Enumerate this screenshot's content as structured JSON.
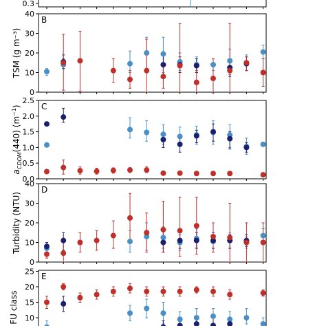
{
  "colors": {
    "light_blue": "#4a8fc6",
    "dark_blue": "#1a1f6e",
    "red": "#c0302a"
  },
  "chart_data": [
    {
      "panel": "top-partial",
      "type": "scatter",
      "ytick_labels": [
        "0.3"
      ],
      "ylim": [
        0.3,
        0.35
      ],
      "series": []
    },
    {
      "panel": "B",
      "type": "scatter",
      "ylabel": "TSM (g m⁻³)",
      "ylim": [
        0,
        40
      ],
      "yticks": [
        0,
        10,
        20,
        30,
        40
      ],
      "x": [
        1,
        2,
        3,
        4,
        5,
        6,
        7,
        8,
        9,
        10,
        11,
        12,
        13
      ],
      "series": [
        {
          "color": "light_blue",
          "points": [
            {
              "x": 1,
              "y": 10.5,
              "lo": 8.5,
              "hi": 12
            },
            {
              "x": 2,
              "y": 14,
              "lo": 12,
              "hi": 17
            },
            {
              "x": 6,
              "y": 14.5,
              "lo": 10,
              "hi": 21
            },
            {
              "x": 7,
              "y": 20,
              "lo": 11,
              "hi": 28
            },
            {
              "x": 8,
              "y": 19.5,
              "lo": 10,
              "hi": 28
            },
            {
              "x": 9,
              "y": 15.5,
              "lo": 11,
              "hi": 20
            },
            {
              "x": 10,
              "y": 14,
              "lo": 10,
              "hi": 18
            },
            {
              "x": 11,
              "y": 14,
              "lo": 11,
              "hi": 17
            },
            {
              "x": 12,
              "y": 16,
              "lo": 9,
              "hi": 22
            },
            {
              "x": 13,
              "y": 15,
              "lo": 11,
              "hi": 19
            },
            {
              "x": 14,
              "y": 20.5,
              "lo": 17,
              "hi": 24
            }
          ]
        },
        {
          "color": "dark_blue",
          "points": [
            {
              "x": 2,
              "y": 15.5,
              "lo": 12,
              "hi": 19
            },
            {
              "x": 8,
              "y": 14,
              "lo": 8,
              "hi": 20
            },
            {
              "x": 9,
              "y": 14,
              "lo": 10,
              "hi": 18
            },
            {
              "x": 10,
              "y": 13.5,
              "lo": 10,
              "hi": 17
            },
            {
              "x": 12,
              "y": 12.5,
              "lo": 8,
              "hi": 17
            },
            {
              "x": 13,
              "y": 14.5,
              "lo": 11,
              "hi": 18
            }
          ]
        },
        {
          "color": "red",
          "points": [
            {
              "x": 2,
              "y": 15,
              "lo": 1,
              "hi": 29.5
            },
            {
              "x": 3,
              "y": 16,
              "lo": 0.5,
              "hi": 31
            },
            {
              "x": 5,
              "y": 11,
              "lo": 5,
              "hi": 17
            },
            {
              "x": 6,
              "y": 6.5,
              "lo": 2,
              "hi": 11
            },
            {
              "x": 7,
              "y": 11,
              "lo": 0,
              "hi": 27
            },
            {
              "x": 8,
              "y": 8,
              "lo": 2,
              "hi": 13
            },
            {
              "x": 9,
              "y": 13.5,
              "lo": 0,
              "hi": 35
            },
            {
              "x": 10,
              "y": 5,
              "lo": 0,
              "hi": 11
            },
            {
              "x": 11,
              "y": 7,
              "lo": 0,
              "hi": 17
            },
            {
              "x": 12,
              "y": 11,
              "lo": 0,
              "hi": 35
            },
            {
              "x": 13,
              "y": 15,
              "lo": 11,
              "hi": 18
            },
            {
              "x": 14,
              "y": 10,
              "lo": 3,
              "hi": 17
            }
          ]
        }
      ]
    },
    {
      "panel": "C",
      "type": "scatter",
      "ylabel": "a_CDOM(440) (m⁻¹)",
      "ylim": [
        0,
        2.5
      ],
      "yticks": [
        0.0,
        0.5,
        1.0,
        1.5,
        2.0,
        2.5
      ],
      "series": [
        {
          "color": "light_blue",
          "points": [
            {
              "x": 1,
              "y": 1.08
            },
            {
              "x": 6,
              "y": 1.57,
              "lo": 1.3,
              "hi": 1.95
            },
            {
              "x": 7,
              "y": 1.48,
              "lo": 1.2,
              "hi": 1.85
            },
            {
              "x": 8,
              "y": 1.42,
              "lo": 1.1,
              "hi": 1.72
            },
            {
              "x": 9,
              "y": 1.35,
              "lo": 1.05,
              "hi": 1.65
            },
            {
              "x": 10,
              "y": 1.4,
              "lo": 1.1,
              "hi": 1.68
            },
            {
              "x": 11,
              "y": 1.48,
              "lo": 1.1,
              "hi": 1.85
            },
            {
              "x": 12,
              "y": 1.4,
              "lo": 1.0,
              "hi": 1.72
            },
            {
              "x": 13,
              "y": 1.03,
              "lo": 0.78,
              "hi": 1.3
            },
            {
              "x": 14,
              "y": 1.1
            }
          ]
        },
        {
          "color": "dark_blue",
          "points": [
            {
              "x": 1,
              "y": 1.75
            },
            {
              "x": 2,
              "y": 1.97,
              "lo": 1.8,
              "hi": 2.25
            },
            {
              "x": 8,
              "y": 1.25,
              "lo": 1.0,
              "hi": 1.45
            },
            {
              "x": 9,
              "y": 1.1,
              "lo": 0.85,
              "hi": 1.32
            },
            {
              "x": 10,
              "y": 1.37,
              "lo": 1.15,
              "hi": 1.55
            },
            {
              "x": 11,
              "y": 1.5,
              "lo": 1.2,
              "hi": 1.75
            },
            {
              "x": 12,
              "y": 1.28,
              "lo": 0.95,
              "hi": 1.5
            },
            {
              "x": 13,
              "y": 1.0,
              "lo": 0.85,
              "hi": 1.15
            }
          ]
        },
        {
          "color": "red",
          "points": [
            {
              "x": 1,
              "y": 0.23
            },
            {
              "x": 2,
              "y": 0.36,
              "lo": 0.15,
              "hi": 0.6
            },
            {
              "x": 3,
              "y": 0.26,
              "lo": 0.15,
              "hi": 0.38
            },
            {
              "x": 4,
              "y": 0.24,
              "lo": 0.15,
              "hi": 0.34
            },
            {
              "x": 5,
              "y": 0.27,
              "lo": 0.18,
              "hi": 0.35
            },
            {
              "x": 6,
              "y": 0.28,
              "lo": 0.2,
              "hi": 0.36
            },
            {
              "x": 7,
              "y": 0.28,
              "lo": 0.2,
              "hi": 0.38
            },
            {
              "x": 8,
              "y": 0.18
            },
            {
              "x": 9,
              "y": 0.18
            },
            {
              "x": 10,
              "y": 0.17
            },
            {
              "x": 11,
              "y": 0.17
            },
            {
              "x": 12,
              "y": 0.17
            },
            {
              "x": 14,
              "y": 0.13
            }
          ]
        }
      ]
    },
    {
      "panel": "D",
      "type": "scatter",
      "ylabel": "Turbidity (NTU)",
      "ylim": [
        0,
        40
      ],
      "yticks": [
        0,
        10,
        20,
        30,
        40
      ],
      "series": [
        {
          "color": "light_blue",
          "points": [
            {
              "x": 1,
              "y": 7,
              "lo": 5,
              "hi": 9
            },
            {
              "x": 6,
              "y": 10.5,
              "lo": 5,
              "hi": 16
            },
            {
              "x": 7,
              "y": 13,
              "lo": 6,
              "hi": 20
            },
            {
              "x": 8,
              "y": 12.5,
              "lo": 7,
              "hi": 18
            },
            {
              "x": 9,
              "y": 10,
              "lo": 6,
              "hi": 14
            },
            {
              "x": 10,
              "y": 12,
              "lo": 7,
              "hi": 17
            },
            {
              "x": 11,
              "y": 10.5,
              "lo": 7,
              "hi": 14
            },
            {
              "x": 12,
              "y": 11,
              "lo": 7,
              "hi": 15
            },
            {
              "x": 13,
              "y": 10,
              "lo": 7,
              "hi": 13
            },
            {
              "x": 14,
              "y": 13.5,
              "lo": 10,
              "hi": 17
            }
          ]
        },
        {
          "color": "dark_blue",
          "points": [
            {
              "x": 1,
              "y": 8,
              "lo": 6,
              "hi": 10
            },
            {
              "x": 2,
              "y": 11,
              "lo": 6,
              "hi": 15
            },
            {
              "x": 8,
              "y": 10,
              "lo": 5,
              "hi": 16
            },
            {
              "x": 9,
              "y": 11,
              "lo": 7,
              "hi": 15
            },
            {
              "x": 10,
              "y": 11,
              "lo": 7,
              "hi": 15
            },
            {
              "x": 11,
              "y": 11,
              "lo": 7,
              "hi": 15
            },
            {
              "x": 12,
              "y": 11,
              "lo": 7,
              "hi": 14
            },
            {
              "x": 13,
              "y": 11,
              "lo": 8,
              "hi": 14
            }
          ]
        },
        {
          "color": "red",
          "points": [
            {
              "x": 1,
              "y": 4,
              "lo": 2,
              "hi": 6
            },
            {
              "x": 2,
              "y": 4.5,
              "lo": 0,
              "hi": 10
            },
            {
              "x": 3,
              "y": 10,
              "lo": 5,
              "hi": 15
            },
            {
              "x": 4,
              "y": 11,
              "lo": 6,
              "hi": 16
            },
            {
              "x": 5,
              "y": 13.5,
              "lo": 7,
              "hi": 21
            },
            {
              "x": 6,
              "y": 22.5,
              "lo": 10,
              "hi": 35
            },
            {
              "x": 7,
              "y": 15,
              "lo": 5,
              "hi": 25
            },
            {
              "x": 8,
              "y": 16.5,
              "lo": 5,
              "hi": 31
            },
            {
              "x": 9,
              "y": 16,
              "lo": 3,
              "hi": 33
            },
            {
              "x": 10,
              "y": 18.5,
              "lo": 4,
              "hi": 33
            },
            {
              "x": 11,
              "y": 13,
              "lo": 5,
              "hi": 20
            },
            {
              "x": 12,
              "y": 12.5,
              "lo": 0,
              "hi": 30
            },
            {
              "x": 13,
              "y": 10,
              "lo": 0,
              "hi": 20
            },
            {
              "x": 14,
              "y": 10,
              "lo": 0,
              "hi": 20
            }
          ]
        }
      ]
    },
    {
      "panel": "E",
      "type": "scatter",
      "ylabel": "FU class",
      "ylim": [
        5,
        25
      ],
      "yticks": [
        10,
        15,
        20,
        25
      ],
      "series": [
        {
          "color": "light_blue",
          "points": [
            {
              "x": 1,
              "y": 7,
              "lo": 5,
              "hi": 9
            },
            {
              "x": 6,
              "y": 11.5,
              "lo": 9,
              "hi": 14
            },
            {
              "x": 7,
              "y": 13,
              "lo": 10,
              "hi": 16
            },
            {
              "x": 8,
              "y": 11.5,
              "lo": 8,
              "hi": 15
            },
            {
              "x": 9,
              "y": 9.5,
              "lo": 7,
              "hi": 12
            },
            {
              "x": 10,
              "y": 10,
              "lo": 7,
              "hi": 13
            },
            {
              "x": 11,
              "y": 10.5,
              "lo": 7,
              "hi": 13
            },
            {
              "x": 12,
              "y": 9.5,
              "lo": 7,
              "hi": 12
            },
            {
              "x": 13,
              "y": 10,
              "lo": 8,
              "hi": 13
            },
            {
              "x": 14,
              "y": 8,
              "lo": 6,
              "hi": 10
            }
          ]
        },
        {
          "color": "dark_blue",
          "points": [
            {
              "x": 2,
              "y": 14.5,
              "lo": 12,
              "hi": 17
            },
            {
              "x": 8,
              "y": 7,
              "lo": 5,
              "hi": 9
            },
            {
              "x": 9,
              "y": 7.5,
              "lo": 5,
              "hi": 10
            },
            {
              "x": 10,
              "y": 8,
              "lo": 6,
              "hi": 10
            },
            {
              "x": 11,
              "y": 7.5,
              "lo": 5,
              "hi": 10
            },
            {
              "x": 12,
              "y": 8,
              "lo": 6,
              "hi": 10
            }
          ]
        },
        {
          "color": "red",
          "points": [
            {
              "x": 1,
              "y": 15,
              "lo": 13,
              "hi": 17
            },
            {
              "x": 2,
              "y": 20,
              "lo": 19,
              "hi": 21
            },
            {
              "x": 3,
              "y": 16.5,
              "lo": 15,
              "hi": 18
            },
            {
              "x": 4,
              "y": 17.5,
              "lo": 16,
              "hi": 19
            },
            {
              "x": 5,
              "y": 18.5,
              "lo": 17,
              "hi": 20
            },
            {
              "x": 6,
              "y": 19.5,
              "lo": 18,
              "hi": 21
            },
            {
              "x": 7,
              "y": 18.5,
              "lo": 17,
              "hi": 20
            },
            {
              "x": 8,
              "y": 18.5,
              "lo": 17,
              "hi": 20
            },
            {
              "x": 9,
              "y": 18.5,
              "lo": 17,
              "hi": 20
            },
            {
              "x": 10,
              "y": 19,
              "lo": 18,
              "hi": 20
            },
            {
              "x": 11,
              "y": 18.5,
              "lo": 17,
              "hi": 20
            },
            {
              "x": 12,
              "y": 17.5,
              "lo": 16,
              "hi": 19
            },
            {
              "x": 14,
              "y": 18,
              "lo": 17,
              "hi": 19
            }
          ]
        }
      ]
    }
  ]
}
